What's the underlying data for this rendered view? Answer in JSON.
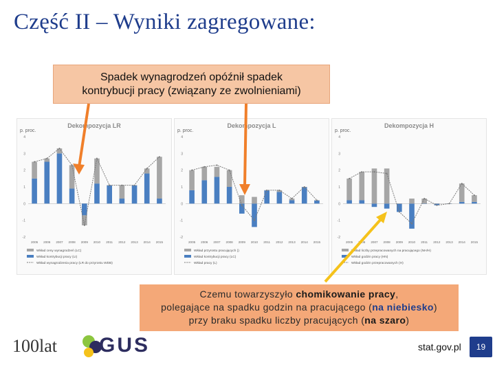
{
  "slide": {
    "title": "Część II – Wyniki zagregowane:",
    "page_number": "19",
    "site": "stat.gov.pl",
    "logo_text": "GUS",
    "logo_anniversary": "100lat"
  },
  "callout_top": {
    "line1": "Spadek wynagrodzeń opóźnił spadek",
    "line2": "kontrybucji pracy (związany ze zwolnieniami)"
  },
  "callout_bottom": {
    "l1_a": "Czemu towarzyszyło ",
    "l1_b": "chomikowanie pracy",
    "l1_c": ",",
    "l2_a": "polegające na spadku godzin na pracującego (",
    "l2_b": "na niebiesko",
    "l2_c": ")",
    "l3_a": "przy braku spadku liczby pracujących (",
    "l3_b": "na szaro",
    "l3_c": ")"
  },
  "colors": {
    "title": "#1f3d8c",
    "bar_blue": "#4a7fc1",
    "bar_gray": "#a6a6a6",
    "arrow_orange": "#f07f2a",
    "arrow_yellow": "#f5c21b",
    "line": "#7a7a7a"
  },
  "chart_data": [
    {
      "type": "bar",
      "title": "Dekompozycja LR",
      "unit": "p. proc.",
      "categories": [
        "2005",
        "2006",
        "2007",
        "2008",
        "2009",
        "2010",
        "2011",
        "2012",
        "2013",
        "2014",
        "2015"
      ],
      "ylim": [
        -2,
        4
      ],
      "series": [
        {
          "name": "Wkład ceny wynagrodzeń (LC)",
          "values": [
            1.5,
            2.5,
            3.0,
            0.9,
            -0.7,
            1.2,
            1.1,
            0.3,
            1.1,
            1.8,
            0.3
          ]
        },
        {
          "name": "Wkład kontrybucji pracy (LI)",
          "values": [
            1.0,
            0.2,
            0.3,
            1.4,
            -0.6,
            1.5,
            0.0,
            0.8,
            0.0,
            0.3,
            2.5
          ]
        },
        {
          "name": "Wkład wynagrodzenia pracy (LR do przyrostu WDB)",
          "values": [
            2.5,
            2.7,
            3.3,
            2.3,
            -1.3,
            2.7,
            1.1,
            1.1,
            1.1,
            2.1,
            2.8
          ]
        }
      ],
      "legend": [
        "Wkład ceny wynagrodzeń (LC)",
        "Wkład kontrybucji pracy (LI)",
        "Wkład wynagrodzenia pracy (LR do przyrostu WDB)"
      ]
    },
    {
      "type": "bar",
      "title": "Dekompozycja L",
      "unit": "p. proc.",
      "categories": [
        "2005",
        "2006",
        "2007",
        "2008",
        "2009",
        "2010",
        "2011",
        "2012",
        "2013",
        "2014",
        "2015"
      ],
      "ylim": [
        -2,
        4
      ],
      "series": [
        {
          "name": "Wkład przyrostu pracujących",
          "values": [
            0.8,
            1.4,
            1.6,
            1.0,
            -0.6,
            -1.4,
            0.8,
            0.7,
            0.2,
            1.0,
            0.2
          ]
        },
        {
          "name": "Wkład kontrybucji pracy",
          "values": [
            1.2,
            0.8,
            0.6,
            1.0,
            0.5,
            0.4,
            0.0,
            0.1,
            0.1,
            0.0,
            0.0
          ]
        },
        {
          "name": "Wkład pracy (L)",
          "values": [
            2.0,
            2.2,
            2.3,
            2.0,
            -0.1,
            -1.0,
            0.8,
            0.8,
            0.3,
            1.0,
            0.2
          ]
        }
      ],
      "legend": [
        "Wkład przyrostu pracujących ()",
        "Wkład kontrybucji pracy (LC)",
        "Wkład pracy (L)"
      ]
    },
    {
      "type": "bar",
      "title": "Dekompozycja H",
      "unit": "p. proc.",
      "categories": [
        "2005",
        "2006",
        "2007",
        "2008",
        "2009",
        "2010",
        "2011",
        "2012",
        "2013",
        "2014",
        "2015"
      ],
      "ylim": [
        -2,
        4
      ],
      "series": [
        {
          "name": "Wkład liczby przepracowanych na pracującego",
          "values": [
            0.2,
            0.2,
            -0.2,
            -0.3,
            -0.5,
            -1.5,
            0.0,
            -0.1,
            0.0,
            0.1,
            0.1
          ]
        },
        {
          "name": "Wkład godzin pracy",
          "values": [
            1.3,
            1.7,
            2.1,
            2.1,
            0.0,
            0.3,
            0.3,
            0.0,
            0.0,
            1.1,
            0.4
          ]
        },
        {
          "name": "Wkład godzin przepracowanych",
          "values": [
            1.5,
            1.9,
            1.9,
            1.8,
            -0.5,
            -1.2,
            0.3,
            -0.1,
            0.0,
            1.2,
            0.5
          ]
        }
      ],
      "legend": [
        "Wkład liczby przepracowanych na pracującego (NH/H)",
        "Wkład godzin pracy (HN)",
        "Wkład godzin przepracowanych (H)"
      ]
    }
  ]
}
